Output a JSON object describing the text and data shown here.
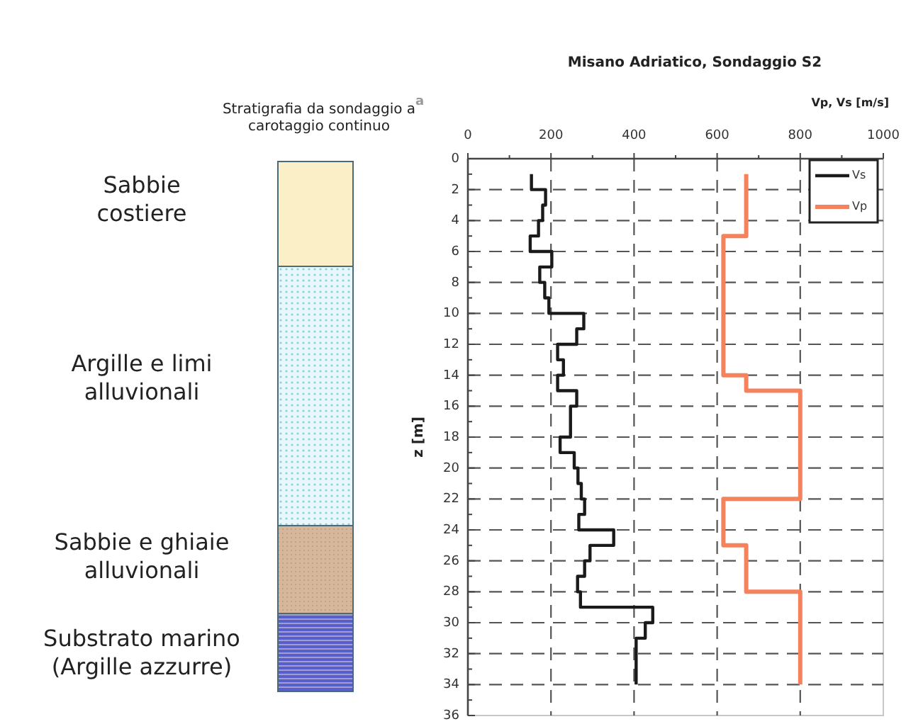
{
  "chart_data": [
    {
      "type": "other",
      "title": "Stratigrafia da sondaggio a carotaggio continuo",
      "annotations": [
        "Sabbie\ncostiere",
        "Argille e limi\nalluvionali",
        "Sabbie e ghiaie\nalluvionali",
        "Substrato marino\n(Argille azzurre)"
      ]
    },
    {
      "type": "line",
      "title": "Misano Adriatico, Sondaggio S2",
      "xlabel": "Vp, Vs [m/s]",
      "ylabel": "z [m]",
      "annotations": [
        "a"
      ],
      "xlim": [
        0,
        1000
      ],
      "ylim": [
        36,
        0
      ],
      "xticks": [
        0,
        {
          "value": 100,
          "label": null
        },
        200,
        {
          "value": 300,
          "label": null
        },
        400,
        {
          "value": 500,
          "label": null
        },
        600,
        {
          "value": 700,
          "label": null
        },
        800,
        {
          "value": 900,
          "label": null
        },
        1000
      ],
      "yticks": [
        0,
        {
          "value": 1,
          "label": null
        },
        2,
        {
          "value": 3,
          "label": null
        },
        4,
        {
          "value": 5,
          "label": null
        },
        6,
        {
          "value": 7,
          "label": null
        },
        8,
        {
          "value": 9,
          "label": null
        },
        10,
        {
          "value": 11,
          "label": null
        },
        12,
        {
          "value": 13,
          "label": null
        },
        14,
        {
          "value": 15,
          "label": null
        },
        16,
        {
          "value": 17,
          "label": null
        },
        18,
        {
          "value": 19,
          "label": null
        },
        20,
        {
          "value": 21,
          "label": null
        },
        22,
        {
          "value": 23,
          "label": null
        },
        24,
        {
          "value": 25,
          "label": null
        },
        26,
        {
          "value": 27,
          "label": null
        },
        28,
        {
          "value": 29,
          "label": null
        },
        30,
        {
          "value": 31,
          "label": null
        },
        32,
        {
          "value": 33,
          "label": null
        },
        34,
        {
          "value": 35,
          "label": null
        },
        36
      ],
      "grid": true,
      "legend": "top right",
      "line_style": "solid",
      "series": [
        {
          "name": "Vs",
          "color": "#1a1a1a",
          "x": [
            153,
            153,
            187,
            187,
            180,
            180,
            170,
            170,
            150,
            150,
            202,
            202,
            173,
            173,
            185,
            185,
            195,
            195,
            279,
            279,
            262,
            262,
            216,
            216,
            230,
            230,
            216,
            216,
            262,
            262,
            247,
            247,
            222,
            222,
            256,
            256,
            265,
            265,
            273,
            273,
            281,
            281,
            267,
            267,
            351,
            351,
            294,
            294,
            281,
            281,
            264,
            264,
            271,
            271,
            445,
            445,
            427,
            427,
            405,
            405
          ],
          "values": [
            1,
            2,
            2,
            3,
            3,
            4,
            4,
            5,
            5,
            6,
            6,
            7,
            7,
            8,
            8,
            9,
            9,
            10,
            10,
            11,
            11,
            12,
            12,
            13,
            13,
            14,
            14,
            15,
            15,
            16,
            16,
            18,
            18,
            19,
            19,
            20,
            20,
            21,
            21,
            22,
            22,
            23,
            23,
            24,
            24,
            25,
            25,
            26,
            26,
            27,
            27,
            28,
            28,
            29,
            29,
            30,
            30,
            31,
            31,
            34
          ]
        },
        {
          "name": "Vp",
          "color": "#f4825c",
          "x": [
            670,
            670,
            615,
            615,
            670,
            670,
            800,
            800,
            615,
            615,
            670,
            670,
            800,
            800
          ],
          "values": [
            1,
            5,
            5,
            14,
            14,
            15,
            15,
            22,
            22,
            25,
            25,
            28,
            28,
            34
          ]
        }
      ]
    }
  ]
}
